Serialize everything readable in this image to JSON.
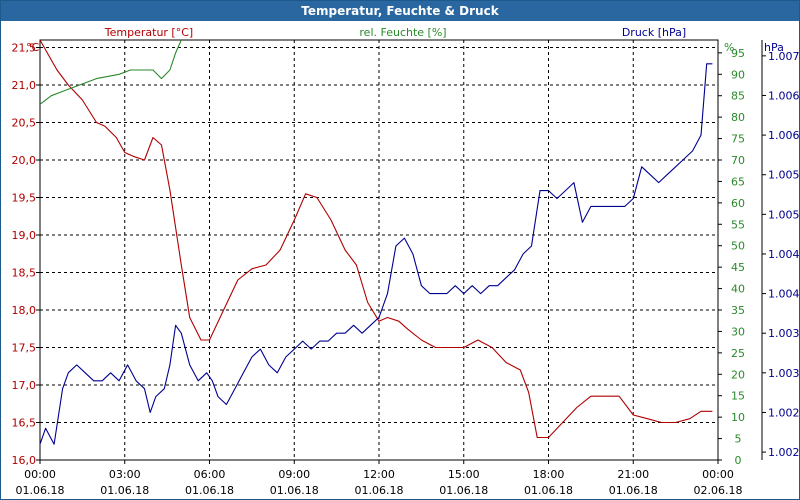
{
  "chart_data": {
    "type": "line",
    "title": "Temperatur, Feuchte & Druck",
    "x_ticks": [
      {
        "time": "00:00",
        "date": "01.06.18"
      },
      {
        "time": "03:00",
        "date": "01.06.18"
      },
      {
        "time": "06:00",
        "date": "01.06.18"
      },
      {
        "time": "09:00",
        "date": "01.06.18"
      },
      {
        "time": "12:00",
        "date": "01.06.18"
      },
      {
        "time": "15:00",
        "date": "01.06.18"
      },
      {
        "time": "18:00",
        "date": "01.06.18"
      },
      {
        "time": "21:00",
        "date": "01.06.18"
      },
      {
        "time": "00:00",
        "date": "02.06.18"
      }
    ],
    "xlim_hours": [
      0,
      24
    ],
    "grid": true,
    "axes": {
      "temperature": {
        "label": "Temperatur [°C]",
        "unit": "°C",
        "color": "#b00000",
        "ylim": [
          16.0,
          21.6
        ],
        "ticks": [
          "16,0",
          "16,5",
          "17,0",
          "17,5",
          "18,0",
          "18,5",
          "19,0",
          "19,5",
          "20,0",
          "20,5",
          "21,0",
          "21,5"
        ],
        "tick_values": [
          16.0,
          16.5,
          17.0,
          17.5,
          18.0,
          18.5,
          19.0,
          19.5,
          20.0,
          20.5,
          21.0,
          21.5
        ]
      },
      "humidity": {
        "label": "rel. Feuchte [%]",
        "unit": "%",
        "color": "#2a8a2a",
        "ylim": [
          0,
          98
        ],
        "ticks": [
          "0",
          "5",
          "10",
          "15",
          "20",
          "25",
          "30",
          "35",
          "40",
          "45",
          "50",
          "55",
          "60",
          "65",
          "70",
          "75",
          "80",
          "85",
          "90",
          "95"
        ],
        "tick_values": [
          0,
          5,
          10,
          15,
          20,
          25,
          30,
          35,
          40,
          45,
          50,
          55,
          60,
          65,
          70,
          75,
          80,
          85,
          90,
          95
        ]
      },
      "pressure": {
        "label": "Druck [hPa]",
        "unit": "hPa",
        "color": "#000090",
        "ylim": [
          1001.9,
          1007.2
        ],
        "ticks": [
          "1.002",
          "1.002",
          "1.003",
          "1.003",
          "1.004",
          "1.004",
          "1.005",
          "1.005",
          "1.006",
          "1.006",
          "1.007"
        ],
        "tick_values": [
          1002.0,
          1002.5,
          1003.0,
          1003.5,
          1004.0,
          1004.5,
          1005.0,
          1005.5,
          1006.0,
          1006.5,
          1007.0
        ]
      }
    },
    "series": [
      {
        "name": "Temperatur [°C]",
        "axis": "temperature",
        "color": "#b00000",
        "points": [
          [
            0.0,
            21.6
          ],
          [
            0.3,
            21.4
          ],
          [
            0.6,
            21.2
          ],
          [
            1.0,
            21.0
          ],
          [
            1.5,
            20.8
          ],
          [
            2.0,
            20.5
          ],
          [
            2.3,
            20.45
          ],
          [
            2.7,
            20.3
          ],
          [
            3.0,
            20.1
          ],
          [
            3.3,
            20.05
          ],
          [
            3.7,
            20.0
          ],
          [
            4.0,
            20.3
          ],
          [
            4.3,
            20.2
          ],
          [
            4.6,
            19.6
          ],
          [
            5.0,
            18.6
          ],
          [
            5.3,
            17.9
          ],
          [
            5.7,
            17.6
          ],
          [
            6.0,
            17.6
          ],
          [
            6.5,
            18.0
          ],
          [
            7.0,
            18.4
          ],
          [
            7.5,
            18.55
          ],
          [
            8.0,
            18.6
          ],
          [
            8.5,
            18.8
          ],
          [
            9.0,
            19.2
          ],
          [
            9.4,
            19.55
          ],
          [
            9.8,
            19.5
          ],
          [
            10.3,
            19.2
          ],
          [
            10.8,
            18.8
          ],
          [
            11.2,
            18.6
          ],
          [
            11.6,
            18.1
          ],
          [
            12.0,
            17.85
          ],
          [
            12.3,
            17.9
          ],
          [
            12.7,
            17.85
          ],
          [
            13.0,
            17.75
          ],
          [
            13.5,
            17.6
          ],
          [
            14.0,
            17.5
          ],
          [
            14.5,
            17.5
          ],
          [
            15.0,
            17.5
          ],
          [
            15.5,
            17.6
          ],
          [
            16.0,
            17.5
          ],
          [
            16.5,
            17.3
          ],
          [
            17.0,
            17.2
          ],
          [
            17.3,
            16.9
          ],
          [
            17.6,
            16.3
          ],
          [
            18.0,
            16.3
          ],
          [
            18.5,
            16.5
          ],
          [
            19.0,
            16.7
          ],
          [
            19.5,
            16.85
          ],
          [
            20.0,
            16.85
          ],
          [
            20.5,
            16.85
          ],
          [
            21.0,
            16.6
          ],
          [
            21.5,
            16.55
          ],
          [
            22.0,
            16.5
          ],
          [
            22.5,
            16.5
          ],
          [
            23.0,
            16.55
          ],
          [
            23.4,
            16.65
          ],
          [
            23.8,
            16.65
          ]
        ]
      },
      {
        "name": "rel. Feuchte [%]",
        "axis": "humidity",
        "color": "#2a8a2a",
        "points": [
          [
            0.0,
            83
          ],
          [
            0.4,
            85
          ],
          [
            0.8,
            86
          ],
          [
            1.2,
            87
          ],
          [
            1.6,
            88
          ],
          [
            2.0,
            89
          ],
          [
            2.4,
            89.5
          ],
          [
            2.8,
            90
          ],
          [
            3.2,
            91
          ],
          [
            3.6,
            91
          ],
          [
            4.0,
            91
          ],
          [
            4.3,
            89
          ],
          [
            4.6,
            91
          ],
          [
            4.8,
            95
          ],
          [
            5.0,
            98
          ]
        ]
      },
      {
        "name": "Druck [hPa]",
        "axis": "pressure",
        "color": "#000090",
        "points": [
          [
            0.0,
            1002.1
          ],
          [
            0.2,
            1002.3
          ],
          [
            0.5,
            1002.1
          ],
          [
            0.8,
            1002.8
          ],
          [
            1.0,
            1003.0
          ],
          [
            1.3,
            1003.1
          ],
          [
            1.6,
            1003.0
          ],
          [
            1.9,
            1002.9
          ],
          [
            2.2,
            1002.9
          ],
          [
            2.5,
            1003.0
          ],
          [
            2.8,
            1002.9
          ],
          [
            3.1,
            1003.1
          ],
          [
            3.4,
            1002.9
          ],
          [
            3.7,
            1002.8
          ],
          [
            3.9,
            1002.5
          ],
          [
            4.1,
            1002.7
          ],
          [
            4.4,
            1002.8
          ],
          [
            4.6,
            1003.1
          ],
          [
            4.8,
            1003.6
          ],
          [
            5.0,
            1003.5
          ],
          [
            5.3,
            1003.1
          ],
          [
            5.6,
            1002.9
          ],
          [
            5.9,
            1003.0
          ],
          [
            6.1,
            1002.9
          ],
          [
            6.3,
            1002.7
          ],
          [
            6.6,
            1002.6
          ],
          [
            6.9,
            1002.8
          ],
          [
            7.2,
            1003.0
          ],
          [
            7.5,
            1003.2
          ],
          [
            7.8,
            1003.3
          ],
          [
            8.1,
            1003.1
          ],
          [
            8.4,
            1003.0
          ],
          [
            8.7,
            1003.2
          ],
          [
            9.0,
            1003.3
          ],
          [
            9.3,
            1003.4
          ],
          [
            9.6,
            1003.3
          ],
          [
            9.9,
            1003.4
          ],
          [
            10.2,
            1003.4
          ],
          [
            10.5,
            1003.5
          ],
          [
            10.8,
            1003.5
          ],
          [
            11.1,
            1003.6
          ],
          [
            11.4,
            1003.5
          ],
          [
            11.7,
            1003.6
          ],
          [
            12.0,
            1003.7
          ],
          [
            12.3,
            1004.0
          ],
          [
            12.6,
            1004.6
          ],
          [
            12.9,
            1004.7
          ],
          [
            13.2,
            1004.5
          ],
          [
            13.5,
            1004.1
          ],
          [
            13.8,
            1004.0
          ],
          [
            14.1,
            1004.0
          ],
          [
            14.4,
            1004.0
          ],
          [
            14.7,
            1004.1
          ],
          [
            15.0,
            1004.0
          ],
          [
            15.3,
            1004.1
          ],
          [
            15.6,
            1004.0
          ],
          [
            15.9,
            1004.1
          ],
          [
            16.2,
            1004.1
          ],
          [
            16.5,
            1004.2
          ],
          [
            16.8,
            1004.3
          ],
          [
            17.1,
            1004.5
          ],
          [
            17.4,
            1004.6
          ],
          [
            17.7,
            1005.3
          ],
          [
            18.0,
            1005.3
          ],
          [
            18.3,
            1005.2
          ],
          [
            18.6,
            1005.3
          ],
          [
            18.9,
            1005.4
          ],
          [
            19.2,
            1004.9
          ],
          [
            19.5,
            1005.1
          ],
          [
            19.8,
            1005.1
          ],
          [
            20.1,
            1005.1
          ],
          [
            20.4,
            1005.1
          ],
          [
            20.7,
            1005.1
          ],
          [
            21.0,
            1005.2
          ],
          [
            21.3,
            1005.6
          ],
          [
            21.6,
            1005.5
          ],
          [
            21.9,
            1005.4
          ],
          [
            22.2,
            1005.5
          ],
          [
            22.5,
            1005.6
          ],
          [
            22.8,
            1005.7
          ],
          [
            23.1,
            1005.8
          ],
          [
            23.4,
            1006.0
          ],
          [
            23.6,
            1006.9
          ],
          [
            23.8,
            1006.9
          ]
        ]
      }
    ]
  }
}
